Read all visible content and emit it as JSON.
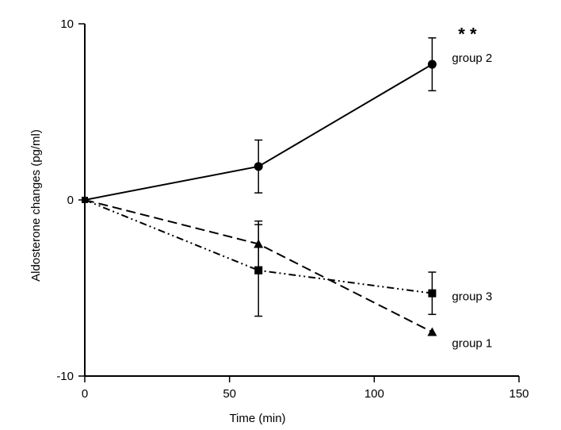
{
  "chart_data": {
    "type": "line",
    "title": "",
    "xlabel": "Time (min)",
    "ylabel": "Aldosterone changes (pg/ml)",
    "xlim": [
      0,
      150
    ],
    "ylim": [
      -10,
      10
    ],
    "xticks": [
      0,
      50,
      100,
      150
    ],
    "yticks": [
      -10,
      0,
      10
    ],
    "xtick_labels": [
      "0",
      "50",
      "100",
      "150"
    ],
    "ytick_labels": [
      "-10",
      "0",
      "10"
    ],
    "grid": false,
    "legend": "none",
    "series": [
      {
        "name": "group 2",
        "x": [
          0,
          60,
          120
        ],
        "y": [
          0,
          1.9,
          7.7
        ],
        "error": [
          0,
          1.5,
          1.5
        ],
        "marker": "circle",
        "line_style": "solid"
      },
      {
        "name": "group 3",
        "x": [
          0,
          60,
          120
        ],
        "y": [
          0,
          -4.0,
          -5.3
        ],
        "error": [
          0,
          2.6,
          1.2
        ],
        "marker": "square",
        "line_style": "dash-dot-dot"
      },
      {
        "name": "group 1",
        "x": [
          0,
          60,
          120
        ],
        "y": [
          0,
          -2.5,
          -7.5
        ],
        "error": [
          0,
          1.3,
          0
        ],
        "marker": "triangle",
        "line_style": "dashed"
      }
    ],
    "annotations": [
      {
        "text": "* *",
        "x": 129,
        "y": 9.8
      }
    ],
    "color": "#000000"
  }
}
